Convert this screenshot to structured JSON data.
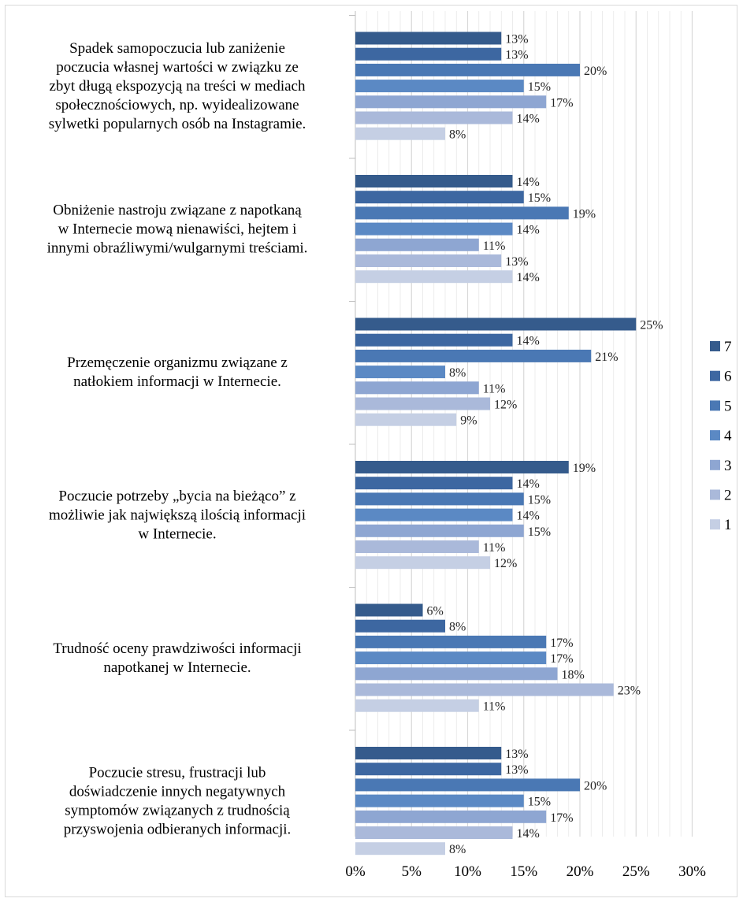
{
  "colors": {
    "7": "#355b8c",
    "6": "#3d67a1",
    "5": "#4a78b4",
    "4": "#5b89c4",
    "3": "#8ea6d2",
    "2": "#aab9da",
    "1": "#c5cfe4",
    "major_grid": "#d9d9d9",
    "minor_grid": "#e8e8e8"
  },
  "chart_data": {
    "type": "bar",
    "orientation": "horizontal",
    "categories": [
      [
        "Spadek samopoczucia lub zaniżenie",
        "poczucia własnej wartości w związku ze",
        "zbyt długą ekspozycją na treści w mediach",
        "społecznościowych, np. wyidealizowane",
        "sylwetki popularnych osób na Instagramie."
      ],
      [
        "Obniżenie nastroju związane z napotkaną",
        "w Internecie mową nienawiści, hejtem i",
        "innymi obraźliwymi/wulgarnymi treściami."
      ],
      [
        "Przemęczenie organizmu związane z",
        "natłokiem informacji w Internecie."
      ],
      [
        "Poczucie potrzeby „bycia na bieżąco” z",
        "możliwie jak największą ilością informacji",
        "w Internecie."
      ],
      [
        "Trudność oceny prawdziwości informacji",
        "napotkanej w Internecie."
      ],
      [
        "Poczucie stresu, frustracji lub",
        "doświadczenie innych negatywnych",
        "symptomów związanych z trudnością",
        "przyswojenia odbieranych informacji."
      ]
    ],
    "series": [
      {
        "name": "7",
        "values": [
          13,
          14,
          25,
          19,
          6,
          13
        ]
      },
      {
        "name": "6",
        "values": [
          13,
          15,
          14,
          14,
          8,
          13
        ]
      },
      {
        "name": "5",
        "values": [
          20,
          19,
          21,
          15,
          17,
          20
        ]
      },
      {
        "name": "4",
        "values": [
          15,
          14,
          8,
          14,
          17,
          15
        ]
      },
      {
        "name": "3",
        "values": [
          17,
          11,
          11,
          15,
          18,
          17
        ]
      },
      {
        "name": "2",
        "values": [
          14,
          13,
          12,
          11,
          23,
          14
        ]
      },
      {
        "name": "1",
        "values": [
          8,
          14,
          9,
          12,
          11,
          8
        ]
      }
    ],
    "value_suffix": "%",
    "x_ticks": [
      "0%",
      "5%",
      "10%",
      "15%",
      "20%",
      "25%",
      "30%"
    ],
    "xlim": [
      0,
      30
    ],
    "grid": true,
    "legend_position": "right",
    "legend_order": [
      "7",
      "6",
      "5",
      "4",
      "3",
      "2",
      "1"
    ]
  }
}
